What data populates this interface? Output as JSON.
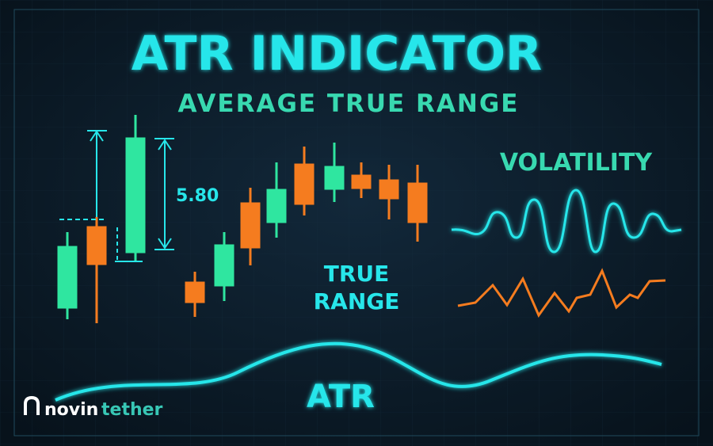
{
  "header": {
    "title": "ATR INDICATOR",
    "subtitle": "AVERAGE TRUE RANGE"
  },
  "labels": {
    "range_value": "5.80",
    "true_range": [
      "TRUE",
      "RANGE"
    ],
    "volatility": "VOLATILITY",
    "atr": "ATR"
  },
  "logo": {
    "part1": "novin",
    "part2": "tether"
  }
}
